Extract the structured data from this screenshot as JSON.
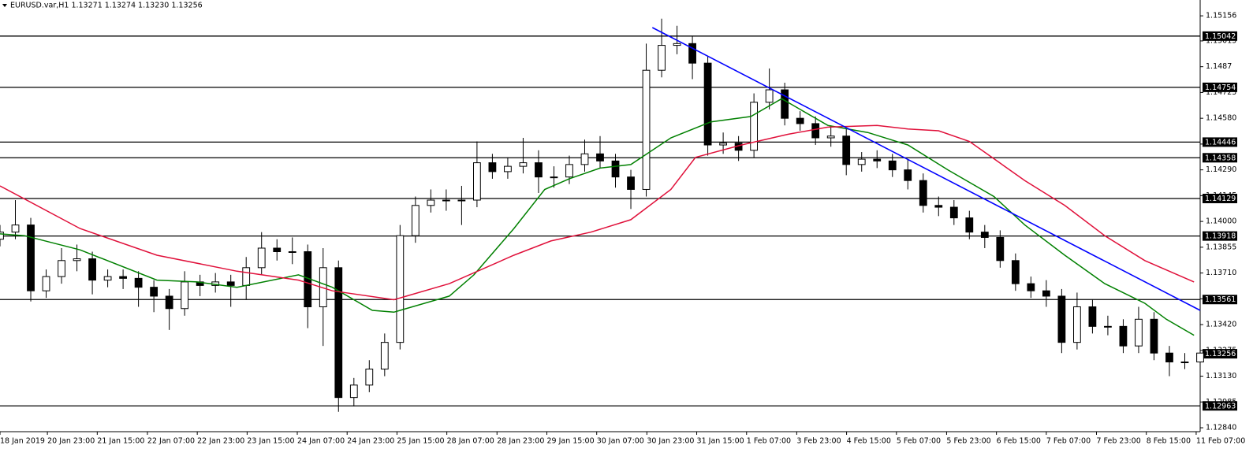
{
  "chart_data": {
    "type": "candlestick",
    "title": "EURUSD.var,H1  1.13271 1.13274 1.13230 1.13256",
    "x": [
      0,
      5,
      10,
      15,
      20,
      25,
      30,
      35,
      40,
      45,
      50,
      55,
      60,
      65,
      70,
      75,
      80,
      85,
      90,
      95,
      100,
      105,
      110,
      115,
      120,
      125,
      130,
      135,
      140,
      145,
      150,
      155,
      160,
      165,
      170,
      175,
      180,
      185,
      190,
      195,
      200,
      205,
      210,
      215,
      220,
      225,
      230,
      235,
      240,
      245,
      250,
      255,
      260,
      265,
      270,
      275,
      280,
      285,
      290,
      295,
      300,
      305,
      310,
      315,
      320,
      325,
      330,
      335,
      340,
      345,
      350,
      355,
      360,
      365,
      370,
      375,
      380,
      385,
      390
    ],
    "open": [
      1.139,
      1.1394,
      1.1398,
      1.1361,
      1.1369,
      1.1378,
      1.1379,
      1.1367,
      1.1369,
      1.1368,
      1.1363,
      1.1358,
      1.1351,
      1.1366,
      1.1364,
      1.1366,
      1.1364,
      1.1374,
      1.1385,
      1.1383,
      1.1383,
      1.1352,
      1.1374,
      1.1301,
      1.1308,
      1.1317,
      1.1332,
      1.1392,
      1.1409,
      1.1412,
      1.1412,
      1.1412,
      1.1433,
      1.1428,
      1.1431,
      1.1433,
      1.1425,
      1.1425,
      1.1432,
      1.1438,
      1.1434,
      1.1425,
      1.1418,
      1.1485,
      1.1499,
      1.15,
      1.1489,
      1.1443,
      1.1444,
      1.144,
      1.1467,
      1.1474,
      1.1458,
      1.1455,
      1.1447,
      1.1448,
      1.1432,
      1.1435,
      1.1434,
      1.1429,
      1.1423,
      1.1409,
      1.1408,
      1.1402,
      1.1394,
      1.1391,
      1.1378,
      1.1365,
      1.1361,
      1.1358,
      1.1332,
      1.1352,
      1.1341,
      1.1341,
      1.133,
      1.1345,
      1.1326,
      1.1321,
      1.1321
    ],
    "high": [
      1.1398,
      1.1412,
      1.1402,
      1.1373,
      1.1385,
      1.1387,
      1.1383,
      1.1373,
      1.1373,
      1.1372,
      1.1367,
      1.1362,
      1.1372,
      1.137,
      1.1371,
      1.137,
      1.138,
      1.1394,
      1.139,
      1.1391,
      1.1387,
      1.1385,
      1.1378,
      1.1312,
      1.1322,
      1.1337,
      1.1398,
      1.1414,
      1.1418,
      1.1418,
      1.142,
      1.1445,
      1.1438,
      1.1436,
      1.1447,
      1.144,
      1.1431,
      1.1437,
      1.1446,
      1.1448,
      1.1438,
      1.1429,
      1.15,
      1.1514,
      1.151,
      1.1504,
      1.1493,
      1.145,
      1.1448,
      1.1472,
      1.1486,
      1.1478,
      1.1462,
      1.1459,
      1.1454,
      1.1452,
      1.1439,
      1.144,
      1.1438,
      1.1435,
      1.1427,
      1.1414,
      1.1412,
      1.1406,
      1.1398,
      1.1395,
      1.1382,
      1.1369,
      1.1367,
      1.1362,
      1.136,
      1.1356,
      1.1347,
      1.1345,
      1.1352,
      1.1349,
      1.133,
      1.1326,
      1.133
    ],
    "low": [
      1.1386,
      1.139,
      1.1355,
      1.1357,
      1.1365,
      1.1372,
      1.1359,
      1.1363,
      1.1362,
      1.1352,
      1.1349,
      1.1339,
      1.1347,
      1.1358,
      1.136,
      1.1352,
      1.1356,
      1.137,
      1.1378,
      1.1376,
      1.134,
      1.133,
      1.1293,
      1.1296,
      1.1304,
      1.1313,
      1.1328,
      1.1388,
      1.1405,
      1.1406,
      1.1398,
      1.1408,
      1.1424,
      1.1424,
      1.1427,
      1.1416,
      1.1419,
      1.1421,
      1.1428,
      1.143,
      1.1419,
      1.1407,
      1.1414,
      1.1481,
      1.1494,
      1.148,
      1.1437,
      1.1438,
      1.1434,
      1.1436,
      1.1463,
      1.1454,
      1.1451,
      1.1443,
      1.1442,
      1.1426,
      1.1428,
      1.143,
      1.1425,
      1.1418,
      1.1405,
      1.1403,
      1.1398,
      1.139,
      1.1385,
      1.1374,
      1.1361,
      1.1357,
      1.1352,
      1.1326,
      1.1328,
      1.1337,
      1.1336,
      1.1326,
      1.1326,
      1.1322,
      1.1313,
      1.1317,
      1.1317
    ],
    "close": [
      1.1394,
      1.1398,
      1.1361,
      1.1369,
      1.1378,
      1.1379,
      1.1367,
      1.1369,
      1.1368,
      1.1363,
      1.1358,
      1.1351,
      1.1366,
      1.1364,
      1.1366,
      1.1364,
      1.1374,
      1.1385,
      1.1383,
      1.1383,
      1.1352,
      1.1374,
      1.1301,
      1.1308,
      1.1317,
      1.1332,
      1.1392,
      1.1409,
      1.1412,
      1.1412,
      1.1412,
      1.1433,
      1.1428,
      1.1431,
      1.1433,
      1.1425,
      1.1425,
      1.1432,
      1.1438,
      1.1434,
      1.1425,
      1.1418,
      1.1485,
      1.1499,
      1.15,
      1.1489,
      1.1443,
      1.1444,
      1.144,
      1.1467,
      1.1474,
      1.1458,
      1.1455,
      1.1447,
      1.1448,
      1.1432,
      1.1435,
      1.1434,
      1.1429,
      1.1423,
      1.1409,
      1.1408,
      1.1402,
      1.1394,
      1.1391,
      1.1378,
      1.1365,
      1.1361,
      1.1358,
      1.1332,
      1.1352,
      1.1341,
      1.1341,
      1.133,
      1.1345,
      1.1326,
      1.1321,
      1.1321,
      1.1326
    ],
    "up_color": "#ffffff",
    "down_color": "#000000",
    "xlim": [
      0,
      390
    ],
    "ylim": [
      1.12818,
      1.15245
    ],
    "yticks": [
      1.15156,
      1.15015,
      1.1487,
      1.14725,
      {
        "value": 1.1458,
        "label": "1.14580"
      },
      1.14435,
      {
        "value": 1.1429,
        "label": "1.14290"
      },
      1.14145,
      {
        "value": 1.14,
        "label": "1.14000"
      },
      1.13855,
      {
        "value": 1.1371,
        "label": "1.13710"
      },
      1.13565,
      {
        "value": 1.1342,
        "label": "1.13420"
      },
      1.13275,
      {
        "value": 1.1313,
        "label": "1.13130"
      },
      1.12985,
      {
        "value": 1.1284,
        "label": "1.12840"
      }
    ],
    "xticks": [
      {
        "value": 0,
        "label": "18 Jan 2019"
      },
      {
        "value": 15.4,
        "label": "20 Jan 23:00"
      },
      {
        "value": 31.6,
        "label": "21 Jan 15:00"
      },
      {
        "value": 47.9,
        "label": "22 Jan 07:00"
      },
      {
        "value": 64.1,
        "label": "22 Jan 23:00"
      },
      {
        "value": 80.3,
        "label": "23 Jan 15:00"
      },
      {
        "value": 96.6,
        "label": "24 Jan 07:00"
      },
      {
        "value": 112.8,
        "label": "24 Jan 23:00"
      },
      {
        "value": 129.0,
        "label": "25 Jan 15:00"
      },
      {
        "value": 145.2,
        "label": "28 Jan 07:00"
      },
      {
        "value": 161.5,
        "label": "28 Jan 23:00"
      },
      {
        "value": 177.7,
        "label": "29 Jan 15:00"
      },
      {
        "value": 193.9,
        "label": "30 Jan 07:00"
      },
      {
        "value": 210.2,
        "label": "30 Jan 23:00"
      },
      {
        "value": 226.4,
        "label": "31 Jan 15:00"
      },
      {
        "value": 242.6,
        "label": "1 Feb 07:00"
      },
      {
        "value": 258.9,
        "label": "3 Feb 23:00"
      },
      {
        "value": 275.1,
        "label": "4 Feb 15:00"
      },
      {
        "value": 291.3,
        "label": "5 Feb 07:00"
      },
      {
        "value": 307.6,
        "label": "5 Feb 23:00"
      },
      {
        "value": 323.8,
        "label": "6 Feb 15:00"
      },
      {
        "value": 340.0,
        "label": "7 Feb 07:00"
      },
      {
        "value": 356.3,
        "label": "7 Feb 23:00"
      },
      {
        "value": 372.5,
        "label": "8 Feb 15:00"
      },
      {
        "value": 388.7,
        "label": "11 Feb 07:00"
      }
    ],
    "overlays": [
      {
        "color": "#008000",
        "x": [
          0,
          8,
          26,
          51,
          64,
          77,
          97,
          108,
          121,
          128,
          146,
          154,
          167,
          177,
          185,
          195,
          205,
          218,
          231,
          244,
          254,
          269,
          282,
          295,
          308,
          323,
          333,
          346,
          359,
          372,
          379,
          388
        ],
        "values": [
          1.1393,
          1.1392,
          1.1384,
          1.1367,
          1.1366,
          1.1363,
          1.137,
          1.1363,
          1.135,
          1.1349,
          1.1358,
          1.137,
          1.1396,
          1.1418,
          1.1424,
          1.143,
          1.1432,
          1.1447,
          1.1456,
          1.1459,
          1.1469,
          1.1454,
          1.145,
          1.1443,
          1.1429,
          1.1414,
          1.1398,
          1.1381,
          1.1365,
          1.1354,
          1.1345,
          1.1336
        ]
      },
      {
        "color": "#e0103a",
        "x": [
          0,
          26,
          51,
          77,
          97,
          108,
          128,
          146,
          167,
          179,
          192,
          205,
          218,
          226,
          241,
          256,
          269,
          285,
          295,
          305,
          315,
          333,
          346,
          359,
          372,
          388
        ],
        "values": [
          1.142,
          1.1396,
          1.1381,
          1.1372,
          1.1367,
          1.1361,
          1.1356,
          1.1365,
          1.1381,
          1.1389,
          1.1394,
          1.1401,
          1.1418,
          1.1436,
          1.1443,
          1.1449,
          1.1453,
          1.1454,
          1.1452,
          1.1451,
          1.1445,
          1.1423,
          1.1409,
          1.1392,
          1.1378,
          1.1366
        ]
      }
    ],
    "trendline": {
      "color": "#0000ff",
      "x": [
        212,
        390
      ],
      "values": [
        1.1509,
        1.135
      ]
    },
    "levels": [
      1.15042,
      1.14754,
      1.14446,
      1.14358,
      1.14129,
      1.13918,
      1.13561,
      1.12963
    ],
    "last_price": 1.13256
  }
}
